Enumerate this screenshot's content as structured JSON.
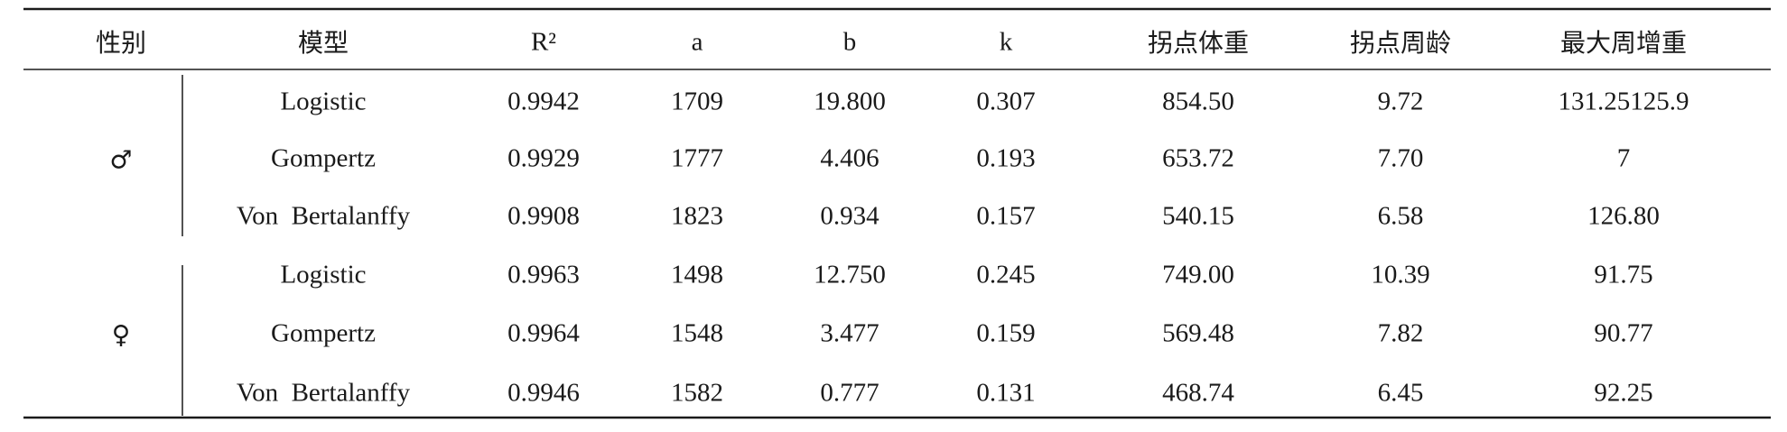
{
  "table": {
    "header": [
      "性别",
      "模型",
      "R²",
      "a",
      "b",
      "k",
      "拐点体重",
      "拐点周龄",
      "最大周增重"
    ],
    "groups": [
      {
        "sex": "♂",
        "rows": [
          [
            "Logistic",
            "0.9942",
            "1709",
            "19.800",
            "0.307",
            "854.50",
            "9.72",
            "131.25125.9"
          ],
          [
            "Gompertz",
            "0.9929",
            "1777",
            "4.406",
            "0.193",
            "653.72",
            "7.70",
            "7"
          ],
          [
            "Von  Bertalanffy",
            "0.9908",
            "1823",
            "0.934",
            "0.157",
            "540.15",
            "6.58",
            "126.80"
          ]
        ]
      },
      {
        "sex": "♀",
        "rows": [
          [
            "Logistic",
            "0.9963",
            "1498",
            "12.750",
            "0.245",
            "749.00",
            "10.39",
            "91.75"
          ],
          [
            "Gompertz",
            "0.9964",
            "1548",
            "3.477",
            "0.159",
            "569.48",
            "7.82",
            "90.77"
          ],
          [
            "Von  Bertalanffy",
            "0.9946",
            "1582",
            "0.777",
            "0.131",
            "468.74",
            "6.45",
            "92.25"
          ]
        ]
      }
    ]
  }
}
